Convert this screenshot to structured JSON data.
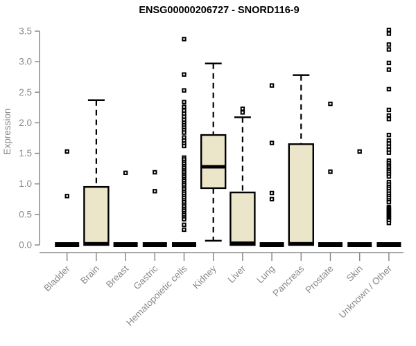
{
  "title": "ENSG00000206727 - SNORD116-9",
  "chart_data": {
    "type": "boxplot",
    "title": "ENSG00000206727 - SNORD116-9",
    "xlabel": "",
    "ylabel": "Expression",
    "ylim": [
      0,
      3.5
    ],
    "yticks": [
      0.0,
      0.5,
      1.0,
      1.5,
      2.0,
      2.5,
      3.0,
      3.5
    ],
    "grid": false,
    "legend": "none",
    "colors": {
      "box_fill": "#ebe5c9",
      "box_stroke": "#000000",
      "median": "#000000",
      "whisker": "#000000",
      "outlier_stroke": "#000000",
      "outlier_fill": "#ffffff",
      "axis": "#8a8a8a",
      "text": "#8a8a8a",
      "title_text": "#000000",
      "background": "#ffffff"
    },
    "categories": [
      "Bladder",
      "Brain",
      "Breast",
      "Gastric",
      "Hematopoietic cells",
      "Kidney",
      "Liver",
      "Lung",
      "Pancreas",
      "Prostate",
      "Skin",
      "Unknown / Other"
    ],
    "series": [
      {
        "category": "Bladder",
        "collapsed": true,
        "q1": 0,
        "median": 0,
        "q3": 0,
        "whisker_low": 0,
        "whisker_high": 0,
        "outliers": [
          1.53,
          0.8
        ]
      },
      {
        "category": "Brain",
        "collapsed": false,
        "q1": 0,
        "median": 0.02,
        "q3": 0.95,
        "whisker_low": 0,
        "whisker_high": 2.37,
        "outliers": []
      },
      {
        "category": "Breast",
        "collapsed": true,
        "q1": 0,
        "median": 0,
        "q3": 0,
        "whisker_low": 0,
        "whisker_high": 0,
        "outliers": [
          1.18
        ]
      },
      {
        "category": "Gastric",
        "collapsed": true,
        "q1": 0,
        "median": 0,
        "q3": 0,
        "whisker_low": 0,
        "whisker_high": 0,
        "outliers": [
          1.19,
          0.88
        ]
      },
      {
        "category": "Hematopoietic cells",
        "collapsed": true,
        "q1": 0,
        "median": 0,
        "q3": 0,
        "whisker_low": 0,
        "whisker_high": 0,
        "outliers": [
          3.37,
          2.79,
          2.53,
          2.34,
          2.26,
          2.2,
          2.15,
          2.1,
          2.05,
          2.0,
          1.96,
          1.92,
          1.88,
          1.84,
          1.76,
          1.71,
          1.66,
          1.62,
          1.43,
          1.4,
          1.36,
          1.33,
          1.29,
          1.26,
          1.22,
          1.19,
          1.15,
          1.12,
          1.08,
          1.05,
          1.01,
          0.98,
          0.94,
          0.91,
          0.87,
          0.84,
          0.8,
          0.77,
          0.73,
          0.7,
          0.66,
          0.63,
          0.59,
          0.56,
          0.52,
          0.49,
          0.45,
          0.42,
          0.33,
          0.25
        ]
      },
      {
        "category": "Kidney",
        "collapsed": false,
        "q1": 0.93,
        "median": 1.28,
        "q3": 1.8,
        "whisker_low": 0.07,
        "whisker_high": 2.97,
        "outliers": []
      },
      {
        "category": "Liver",
        "collapsed": false,
        "q1": 0,
        "median": 0.03,
        "q3": 0.86,
        "whisker_low": 0,
        "whisker_high": 2.09,
        "outliers": [
          2.23,
          2.17
        ]
      },
      {
        "category": "Lung",
        "collapsed": true,
        "q1": 0,
        "median": 0,
        "q3": 0,
        "whisker_low": 0,
        "whisker_high": 0,
        "outliers": [
          2.61,
          1.67,
          0.85,
          0.75
        ]
      },
      {
        "category": "Pancreas",
        "collapsed": false,
        "q1": 0,
        "median": 0.02,
        "q3": 1.65,
        "whisker_low": 0,
        "whisker_high": 2.78,
        "outliers": []
      },
      {
        "category": "Prostate",
        "collapsed": true,
        "q1": 0,
        "median": 0,
        "q3": 0,
        "whisker_low": 0,
        "whisker_high": 0,
        "outliers": [
          2.31,
          1.2
        ]
      },
      {
        "category": "Skin",
        "collapsed": true,
        "q1": 0,
        "median": 0,
        "q3": 0,
        "whisker_low": 0,
        "whisker_high": 0,
        "outliers": [
          1.53
        ]
      },
      {
        "category": "Unknown / Other",
        "collapsed": true,
        "q1": 0,
        "median": 0,
        "q3": 0,
        "whisker_low": 0,
        "whisker_high": 0,
        "outliers": [
          3.52,
          3.46,
          3.28,
          3.2,
          2.98,
          2.87,
          2.55,
          2.21,
          2.12,
          2.06,
          1.8,
          1.71,
          1.66,
          1.61,
          1.56,
          1.51,
          1.38,
          1.34,
          1.3,
          1.27,
          1.23,
          1.2,
          1.16,
          1.12,
          1.03,
          0.99,
          0.95,
          0.92,
          0.88,
          0.84,
          0.8,
          0.77,
          0.73,
          0.7,
          0.62,
          0.6,
          0.58,
          0.56,
          0.54,
          0.52,
          0.5,
          0.48,
          0.46,
          0.44,
          0.42,
          0.4,
          0.36
        ]
      }
    ]
  }
}
